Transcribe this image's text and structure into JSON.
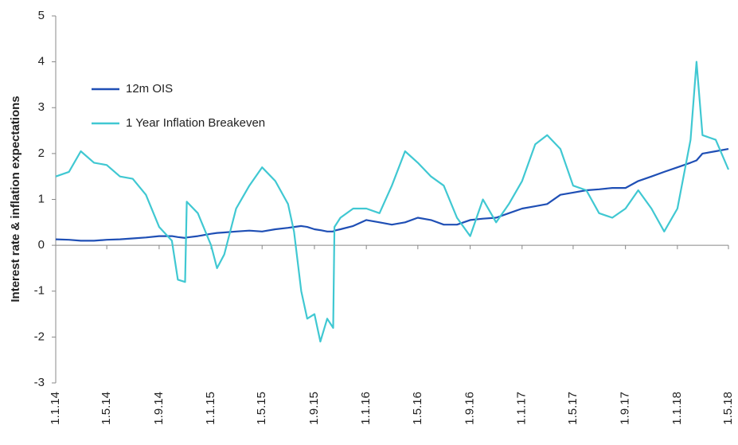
{
  "chart_data": {
    "type": "line",
    "y_label": "Interest rate & inflation expectations",
    "x": [
      "1.1.14",
      "1.2.14",
      "1.3.14",
      "1.4.14",
      "1.5.14",
      "1.6.14",
      "1.7.14",
      "1.8.14",
      "1.9.14",
      "1.10.14",
      "15.10.14",
      "1.11.14",
      "5.11.14",
      "1.12.14",
      "1.1.15",
      "15.1.15",
      "1.2.15",
      "1.3.15",
      "1.4.15",
      "1.5.15",
      "1.6.15",
      "1.7.15",
      "15.7.15",
      "1.8.15",
      "15.8.15",
      "1.9.15",
      "15.9.15",
      "1.10.15",
      "15.10.15",
      "18.10.15",
      "1.11.15",
      "1.12.15",
      "1.1.16",
      "1.2.16",
      "1.3.16",
      "1.4.16",
      "1.5.16",
      "1.6.16",
      "1.7.16",
      "1.8.16",
      "1.9.16",
      "1.10.16",
      "1.11.16",
      "1.12.16",
      "1.1.17",
      "1.2.17",
      "1.3.17",
      "1.4.17",
      "1.5.17",
      "1.6.17",
      "1.7.17",
      "1.8.17",
      "1.9.17",
      "1.10.17",
      "1.11.17",
      "1.12.17",
      "1.1.18",
      "1.2.18",
      "15.2.18",
      "1.3.18",
      "1.4.18",
      "1.5.18"
    ],
    "series": [
      {
        "name": "12m OIS",
        "color": "#1f4fb5",
        "values": [
          0.13,
          0.12,
          0.1,
          0.1,
          0.12,
          0.13,
          0.15,
          0.17,
          0.2,
          0.2,
          0.18,
          0.16,
          0.17,
          0.2,
          0.25,
          0.27,
          0.28,
          0.3,
          0.32,
          0.3,
          0.35,
          0.38,
          0.4,
          0.42,
          0.4,
          0.35,
          0.33,
          0.3,
          0.3,
          0.32,
          0.35,
          0.42,
          0.55,
          0.5,
          0.45,
          0.5,
          0.6,
          0.55,
          0.45,
          0.45,
          0.55,
          0.58,
          0.6,
          0.7,
          0.8,
          0.85,
          0.9,
          1.1,
          1.15,
          1.2,
          1.22,
          1.25,
          1.25,
          1.4,
          1.5,
          1.6,
          1.7,
          1.8,
          1.85,
          2.0,
          2.05,
          2.1
        ]
      },
      {
        "name": "1 Year Inflation Breakeven",
        "color": "#40c8d2",
        "values": [
          1.5,
          1.6,
          2.05,
          1.8,
          1.75,
          1.5,
          1.45,
          1.1,
          0.4,
          0.1,
          -0.75,
          -0.8,
          0.95,
          0.7,
          0.0,
          -0.5,
          -0.2,
          0.8,
          1.3,
          1.7,
          1.4,
          0.9,
          0.3,
          -1.0,
          -1.6,
          -1.5,
          -2.1,
          -1.6,
          -1.8,
          0.4,
          0.6,
          0.8,
          0.8,
          0.7,
          1.3,
          2.05,
          1.8,
          1.5,
          1.3,
          0.6,
          0.2,
          1.0,
          0.5,
          0.9,
          1.4,
          2.2,
          2.4,
          2.1,
          1.3,
          1.2,
          0.7,
          0.6,
          0.8,
          1.2,
          0.8,
          0.3,
          0.8,
          2.3,
          4.0,
          2.4,
          2.3,
          1.65
        ]
      }
    ],
    "ylim": [
      -3,
      5
    ],
    "yticks": [
      -3,
      -2,
      -1,
      0,
      1,
      2,
      3,
      4,
      5
    ],
    "xticks": [
      "1.1.14",
      "1.5.14",
      "1.9.14",
      "1.1.15",
      "1.5.15",
      "1.9.15",
      "1.1.16",
      "1.5.16",
      "1.9.16",
      "1.1.17",
      "1.5.17",
      "1.9.17",
      "1.1.18",
      "1.5.18"
    ],
    "legend": "upper left"
  }
}
